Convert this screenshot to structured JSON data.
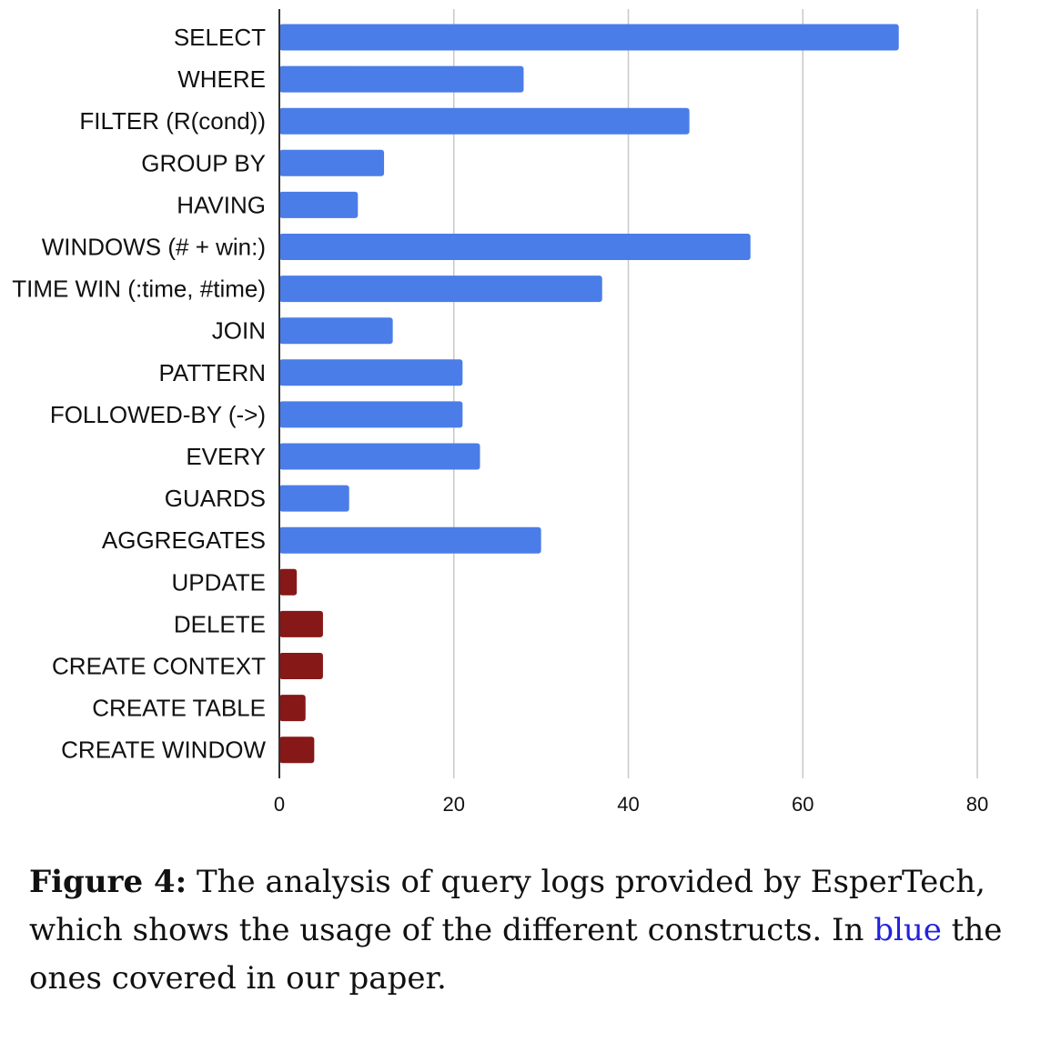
{
  "chart_data": {
    "type": "bar",
    "orientation": "horizontal",
    "categories": [
      "SELECT",
      "WHERE",
      "FILTER (R(cond))",
      "GROUP BY",
      "HAVING",
      "WINDOWS (# + win:)",
      "TIME WIN (:time, #time)",
      "JOIN",
      "PATTERN",
      "FOLLOWED-BY (->)",
      "EVERY",
      "GUARDS",
      "AGGREGATES",
      "UPDATE",
      "DELETE",
      "CREATE CONTEXT",
      "CREATE TABLE",
      "CREATE WINDOW"
    ],
    "values": [
      71,
      28,
      47,
      12,
      9,
      54,
      37,
      13,
      21,
      21,
      23,
      8,
      30,
      2,
      5,
      5,
      3,
      4
    ],
    "covered": [
      true,
      true,
      true,
      true,
      true,
      true,
      true,
      true,
      true,
      true,
      true,
      true,
      true,
      false,
      false,
      false,
      false,
      false
    ],
    "colors": {
      "covered": "#4a7de8",
      "not_covered": "#861818",
      "grid": "#c8c8c8",
      "axis": "#333333"
    },
    "xticks": [
      "0",
      "20",
      "40",
      "60",
      "80"
    ],
    "xlim": [
      0,
      80
    ],
    "grid": true,
    "title": "",
    "xlabel": "",
    "ylabel": ""
  },
  "caption": {
    "figure_label": "Figure 4:",
    "text_before": " The analysis of query logs provided by EsperTech, which shows the usage of the different constructs. In ",
    "highlight_word": "blue",
    "text_after": " the ones covered in our paper.",
    "highlight_color": "#2222dd"
  }
}
